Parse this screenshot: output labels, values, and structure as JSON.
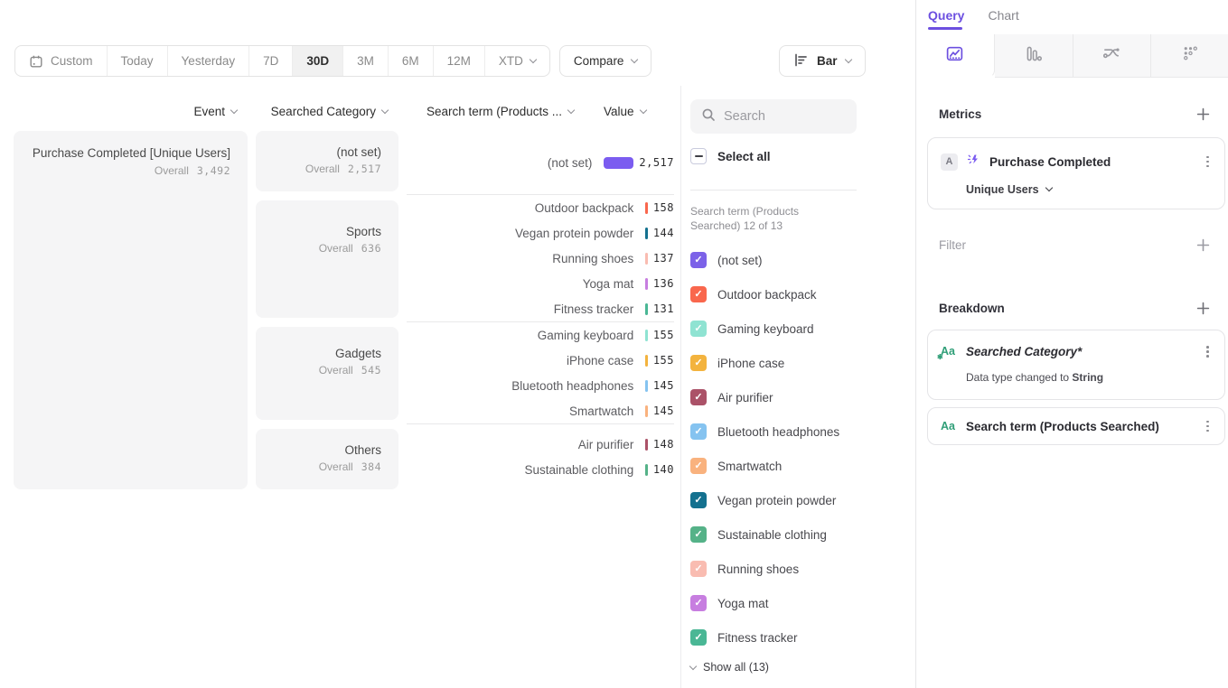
{
  "colors": {
    "accent": "#6c4fe0",
    "not_set_bar": "#7b5cf0",
    "box_gray": "#f5f5f6"
  },
  "toolbar": {
    "date_ranges": [
      {
        "label": "Custom",
        "icon": "calendar"
      },
      {
        "label": "Today"
      },
      {
        "label": "Yesterday"
      },
      {
        "label": "7D"
      },
      {
        "label": "30D",
        "selected": true
      },
      {
        "label": "3M"
      },
      {
        "label": "6M"
      },
      {
        "label": "12M"
      },
      {
        "label": "XTD",
        "chevron": true
      }
    ],
    "compare_label": "Compare",
    "chart_type": {
      "label": "Bar"
    }
  },
  "table": {
    "headers": [
      "Event",
      "Searched Category",
      "Search term (Products ...",
      "Value"
    ],
    "overall_label": "Overall",
    "event": {
      "name": "Purchase Completed [Unique Users]",
      "overall": "3,492"
    },
    "max_value": 2517,
    "groups": [
      {
        "category": "(not set)",
        "overall": "2,517",
        "rows": [
          {
            "term": "(not set)",
            "value": "2,517",
            "num": 2517,
            "color": "#7b5cf0"
          }
        ]
      },
      {
        "category": "Sports",
        "overall": "636",
        "rows": [
          {
            "term": "Outdoor backpack",
            "value": "158",
            "num": 158,
            "color": "#f9674d"
          },
          {
            "term": "Vegan protein powder",
            "value": "144",
            "num": 144,
            "color": "#14718f"
          },
          {
            "term": "Running shoes",
            "value": "137",
            "num": 137,
            "color": "#f9bcb1"
          },
          {
            "term": "Yoga mat",
            "value": "136",
            "num": 136,
            "color": "#c77ee0"
          },
          {
            "term": "Fitness tracker",
            "value": "131",
            "num": 131,
            "color": "#4ab795"
          }
        ]
      },
      {
        "category": "Gadgets",
        "overall": "545",
        "rows": [
          {
            "term": "Gaming keyboard",
            "value": "155",
            "num": 155,
            "color": "#8fe3d2"
          },
          {
            "term": "iPhone case",
            "value": "155",
            "num": 155,
            "color": "#f3b33e"
          },
          {
            "term": "Bluetooth headphones",
            "value": "145",
            "num": 145,
            "color": "#85c3f0"
          },
          {
            "term": "Smartwatch",
            "value": "145",
            "num": 145,
            "color": "#f9b27e"
          }
        ]
      },
      {
        "category": "Others",
        "overall": "384",
        "rows": [
          {
            "term": "Air purifier",
            "value": "148",
            "num": 148,
            "color": "#ab5268"
          },
          {
            "term": "Sustainable clothing",
            "value": "140",
            "num": 140,
            "color": "#55b288"
          }
        ]
      }
    ]
  },
  "legend": {
    "search_placeholder": "Search",
    "select_all_label": "Select all",
    "sublabel": "Search term (Products Searched) 12 of 13",
    "show_all_label": "Show all (13)",
    "items": [
      {
        "label": "(not set)",
        "color": "#7c62e8"
      },
      {
        "label": "Outdoor backpack",
        "color": "#f9674d"
      },
      {
        "label": "Gaming keyboard",
        "color": "#8fe3d2"
      },
      {
        "label": "iPhone case",
        "color": "#f3b33e"
      },
      {
        "label": "Air purifier",
        "color": "#ab5268"
      },
      {
        "label": "Bluetooth headphones",
        "color": "#85c3f0"
      },
      {
        "label": "Smartwatch",
        "color": "#f9b27e"
      },
      {
        "label": "Vegan protein powder",
        "color": "#14718f"
      },
      {
        "label": "Sustainable clothing",
        "color": "#55b288"
      },
      {
        "label": "Running shoes",
        "color": "#f9bcb1"
      },
      {
        "label": "Yoga mat",
        "color": "#c77ee0"
      },
      {
        "label": "Fitness tracker",
        "color": "#4ab795",
        "textured": true
      }
    ]
  },
  "query_panel": {
    "tabs": [
      {
        "label": "Query",
        "active": true
      },
      {
        "label": "Chart",
        "active": false
      }
    ],
    "icon_tabs": [
      "insights",
      "funnels",
      "flows",
      "retention"
    ],
    "metrics": {
      "title": "Metrics",
      "card": {
        "badge": "A",
        "name": "Purchase Completed",
        "subtitle": "Unique Users"
      }
    },
    "filter": {
      "title": "Filter"
    },
    "breakdown": {
      "title": "Breakdown",
      "aa_label": "Aa",
      "cards": [
        {
          "name": "Searched Category*",
          "italic": true,
          "note_prefix": "Data type changed to ",
          "note_bold": "String"
        },
        {
          "name": "Search term (Products Searched)"
        }
      ]
    }
  },
  "chart_data": {
    "type": "bar",
    "title": "Purchase Completed [Unique Users] — 30D — broken down by Searched Category and Search term (Products Searched)",
    "overall_total": 3492,
    "groups": [
      {
        "category": "(not set)",
        "overall": 2517,
        "terms": [
          "(not set)"
        ],
        "values": [
          2517
        ]
      },
      {
        "category": "Sports",
        "overall": 636,
        "terms": [
          "Outdoor backpack",
          "Vegan protein powder",
          "Running shoes",
          "Yoga mat",
          "Fitness tracker"
        ],
        "values": [
          158,
          144,
          137,
          136,
          131
        ]
      },
      {
        "category": "Gadgets",
        "overall": 545,
        "terms": [
          "Gaming keyboard",
          "iPhone case",
          "Bluetooth headphones",
          "Smartwatch"
        ],
        "values": [
          155,
          155,
          145,
          145
        ]
      },
      {
        "category": "Others",
        "overall": 384,
        "terms": [
          "Air purifier",
          "Sustainable clothing"
        ],
        "values": [
          148,
          140
        ]
      }
    ],
    "legend_position": "right",
    "orientation": "horizontal"
  }
}
